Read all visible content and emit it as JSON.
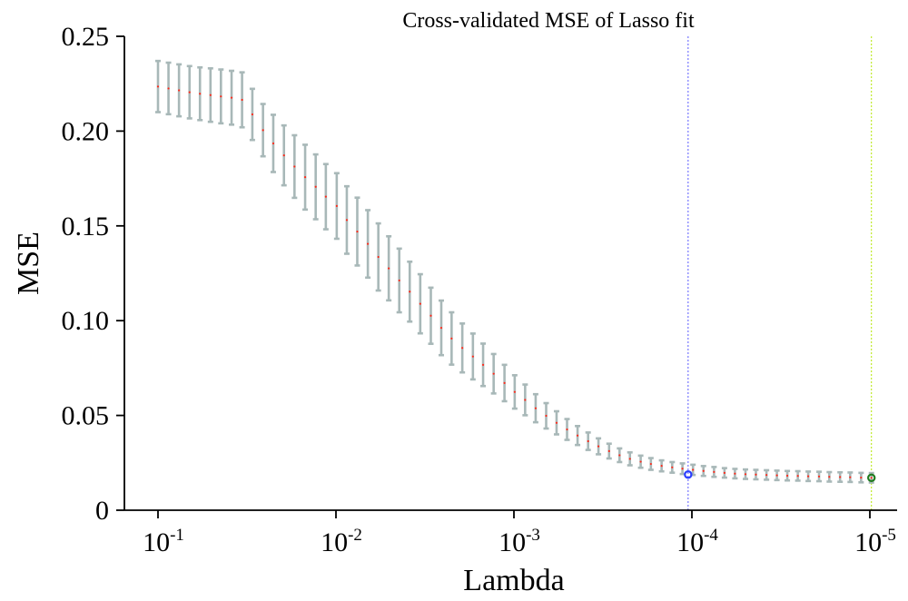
{
  "chart_data": {
    "type": "line",
    "title": "Cross-validated MSE of Lasso fit",
    "xlabel": "Lambda",
    "ylabel": "MSE",
    "x_scale": "log",
    "x_direction": "decreasing",
    "xlim": [
      0.1,
      1e-05
    ],
    "ylim": [
      0,
      0.25
    ],
    "x_ticks": [
      {
        "value": 0.1,
        "base": "10",
        "exp": "-1"
      },
      {
        "value": 0.01,
        "base": "10",
        "exp": "-2"
      },
      {
        "value": 0.001,
        "base": "10",
        "exp": "-3"
      },
      {
        "value": 0.0001,
        "base": "10",
        "exp": "-4"
      },
      {
        "value": 1e-05,
        "base": "10",
        "exp": "-5"
      }
    ],
    "y_ticks": [
      {
        "value": 0,
        "label": "0"
      },
      {
        "value": 0.05,
        "label": "0.05"
      },
      {
        "value": 0.1,
        "label": "0.10"
      },
      {
        "value": 0.15,
        "label": "0.15"
      },
      {
        "value": 0.2,
        "label": "0.20"
      },
      {
        "value": 0.25,
        "label": "0.25"
      }
    ],
    "grid": false,
    "legend": "none",
    "series": [
      {
        "type": "errorbar",
        "x": [
          0.1,
          0.0873,
          0.0762,
          0.0665,
          0.0581,
          0.0507,
          0.0443,
          0.0386,
          0.0337,
          0.0295,
          0.0257,
          0.0225,
          0.0196,
          0.0171,
          0.0149,
          0.013,
          0.0114,
          0.0099,
          0.00869,
          0.00759,
          0.00662,
          0.00578,
          0.00505,
          0.00441,
          0.00385,
          0.00336,
          0.00293,
          0.00256,
          0.00224,
          0.00195,
          0.0017,
          0.00149,
          0.0013,
          0.00113,
          0.00099,
          0.000865,
          0.000755,
          0.000659,
          0.000576,
          0.000503,
          0.000439,
          0.000383,
          0.000335,
          0.000292,
          0.000255,
          0.000223,
          0.000194,
          0.00017,
          0.000148,
          0.000129,
          0.000113,
          9.86e-05,
          8.61e-05,
          7.51e-05,
          6.56e-05,
          5.73e-05,
          5e-05,
          4.37e-05,
          3.81e-05,
          3.33e-05,
          2.91e-05,
          2.54e-05,
          2.22e-05,
          1.93e-05,
          1.69e-05,
          1.47e-05,
          1.29e-05,
          1.12e-05,
          9.8e-06
        ],
        "y": [
          0.2235,
          0.2225,
          0.2215,
          0.2205,
          0.2197,
          0.219,
          0.2183,
          0.2176,
          0.2165,
          0.2088,
          0.2005,
          0.1935,
          0.1872,
          0.1813,
          0.1757,
          0.1706,
          0.1654,
          0.1605,
          0.1531,
          0.147,
          0.1405,
          0.1336,
          0.1276,
          0.1212,
          0.1153,
          0.1089,
          0.1026,
          0.0962,
          0.0906,
          0.0856,
          0.0811,
          0.0767,
          0.072,
          0.0671,
          0.0624,
          0.0582,
          0.0538,
          0.0498,
          0.0461,
          0.0426,
          0.0394,
          0.0364,
          0.0337,
          0.0312,
          0.029,
          0.0271,
          0.0256,
          0.0244,
          0.0234,
          0.0226,
          0.0219,
          0.0213,
          0.0207,
          0.0202,
          0.0197,
          0.0193,
          0.019,
          0.0188,
          0.0186,
          0.0184,
          0.0182,
          0.0181,
          0.0179,
          0.0178,
          0.0176,
          0.0175,
          0.0174,
          0.0172,
          0.0171
        ],
        "err": [
          0.0135,
          0.0136,
          0.0137,
          0.0138,
          0.0139,
          0.0141,
          0.0142,
          0.0142,
          0.0145,
          0.0135,
          0.0138,
          0.0151,
          0.0158,
          0.0165,
          0.0171,
          0.0171,
          0.0172,
          0.0173,
          0.0178,
          0.0179,
          0.0178,
          0.0177,
          0.0169,
          0.0168,
          0.0158,
          0.0156,
          0.0148,
          0.0144,
          0.0138,
          0.0129,
          0.0121,
          0.0112,
          0.0104,
          0.0096,
          0.0088,
          0.0081,
          0.0074,
          0.0067,
          0.0061,
          0.0055,
          0.005,
          0.0046,
          0.0042,
          0.0039,
          0.0036,
          0.0034,
          0.0032,
          0.0031,
          0.0029,
          0.0028,
          0.0028,
          0.0027,
          0.0026,
          0.0026,
          0.0025,
          0.0025,
          0.0025,
          0.0025,
          0.0025,
          0.0025,
          0.0025,
          0.0025,
          0.0025,
          0.0025,
          0.0025,
          0.0025,
          0.0025,
          0.0025,
          0.0025
        ],
        "marker_color": "#ff2a1a",
        "errorbar_color": "#a8b8b8"
      }
    ],
    "reference_lines": [
      {
        "x": 0.000105,
        "y": 0.0188,
        "line_color": "#5c5cff",
        "marker_color": "#2b3fff"
      },
      {
        "x": 9.8e-06,
        "y": 0.0171,
        "line_color": "#b4e600",
        "marker_color": "#1e7a1e"
      }
    ]
  }
}
